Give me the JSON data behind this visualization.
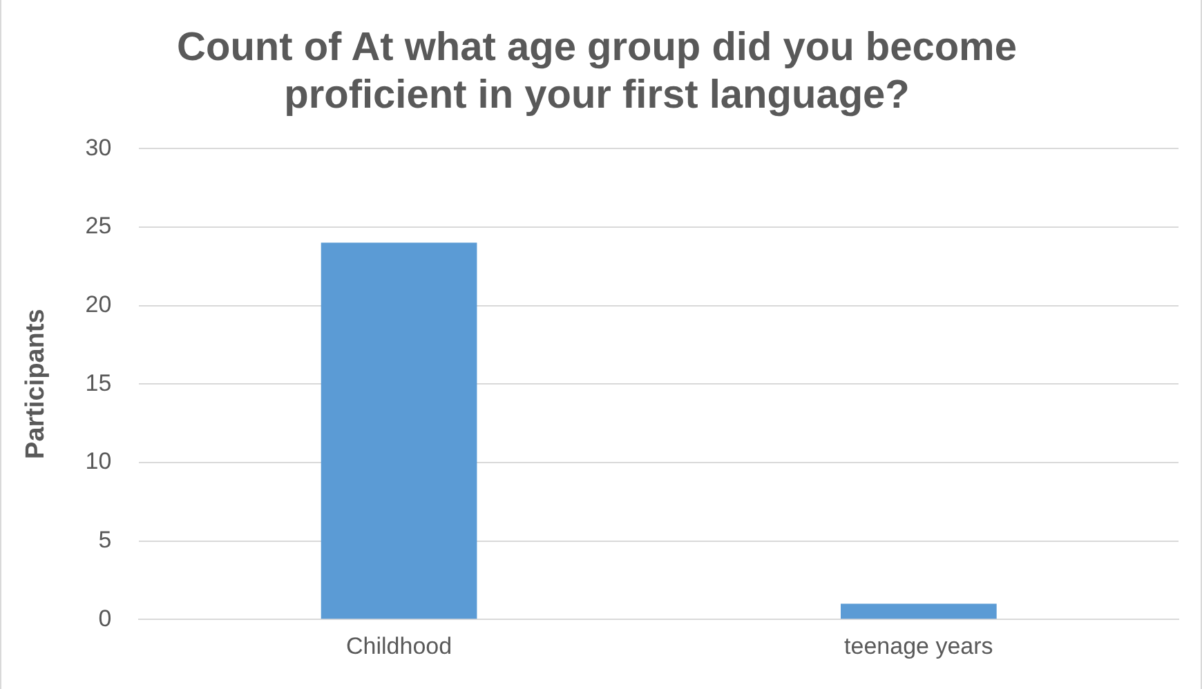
{
  "chart_data": {
    "type": "bar",
    "title": "Count of At what age group did you become proficient in your first language?",
    "ylabel": "Participants",
    "categories": [
      "Childhood",
      "teenage years"
    ],
    "values": [
      24,
      1
    ],
    "color": "#5b9bd5",
    "ylim": [
      0,
      30
    ],
    "yticks": [
      0,
      5,
      10,
      15,
      20,
      25,
      30
    ],
    "grid": "y"
  }
}
